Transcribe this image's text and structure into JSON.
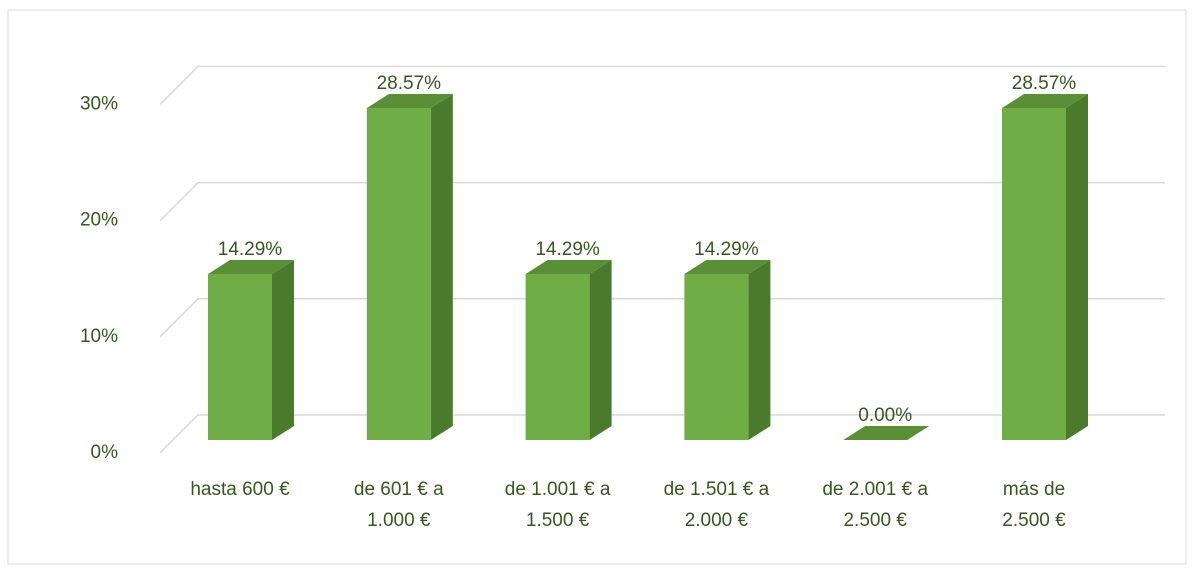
{
  "chart_data": {
    "type": "bar3d",
    "categories": [
      "hasta 600 €",
      "de 601 € a\n1.000 €",
      "de 1.001 € a\n1.500 €",
      "de 1.501 € a\n2.000 €",
      "de 2.001 € a\n2.500 €",
      "más de\n2.500 €"
    ],
    "values": [
      14.29,
      28.57,
      14.29,
      14.29,
      0,
      28.57
    ],
    "value_labels": [
      "14.29%",
      "28.57%",
      "14.29%",
      "14.29%",
      "0.00%",
      "28.57%"
    ],
    "color": "#70ad47",
    "ylim": [
      0,
      30
    ],
    "yticks": [
      {
        "value": 0,
        "label": "0%"
      },
      {
        "value": 10,
        "label": "10%"
      },
      {
        "value": 20,
        "label": "20%"
      },
      {
        "value": 30,
        "label": "30%"
      }
    ],
    "grid": true
  }
}
